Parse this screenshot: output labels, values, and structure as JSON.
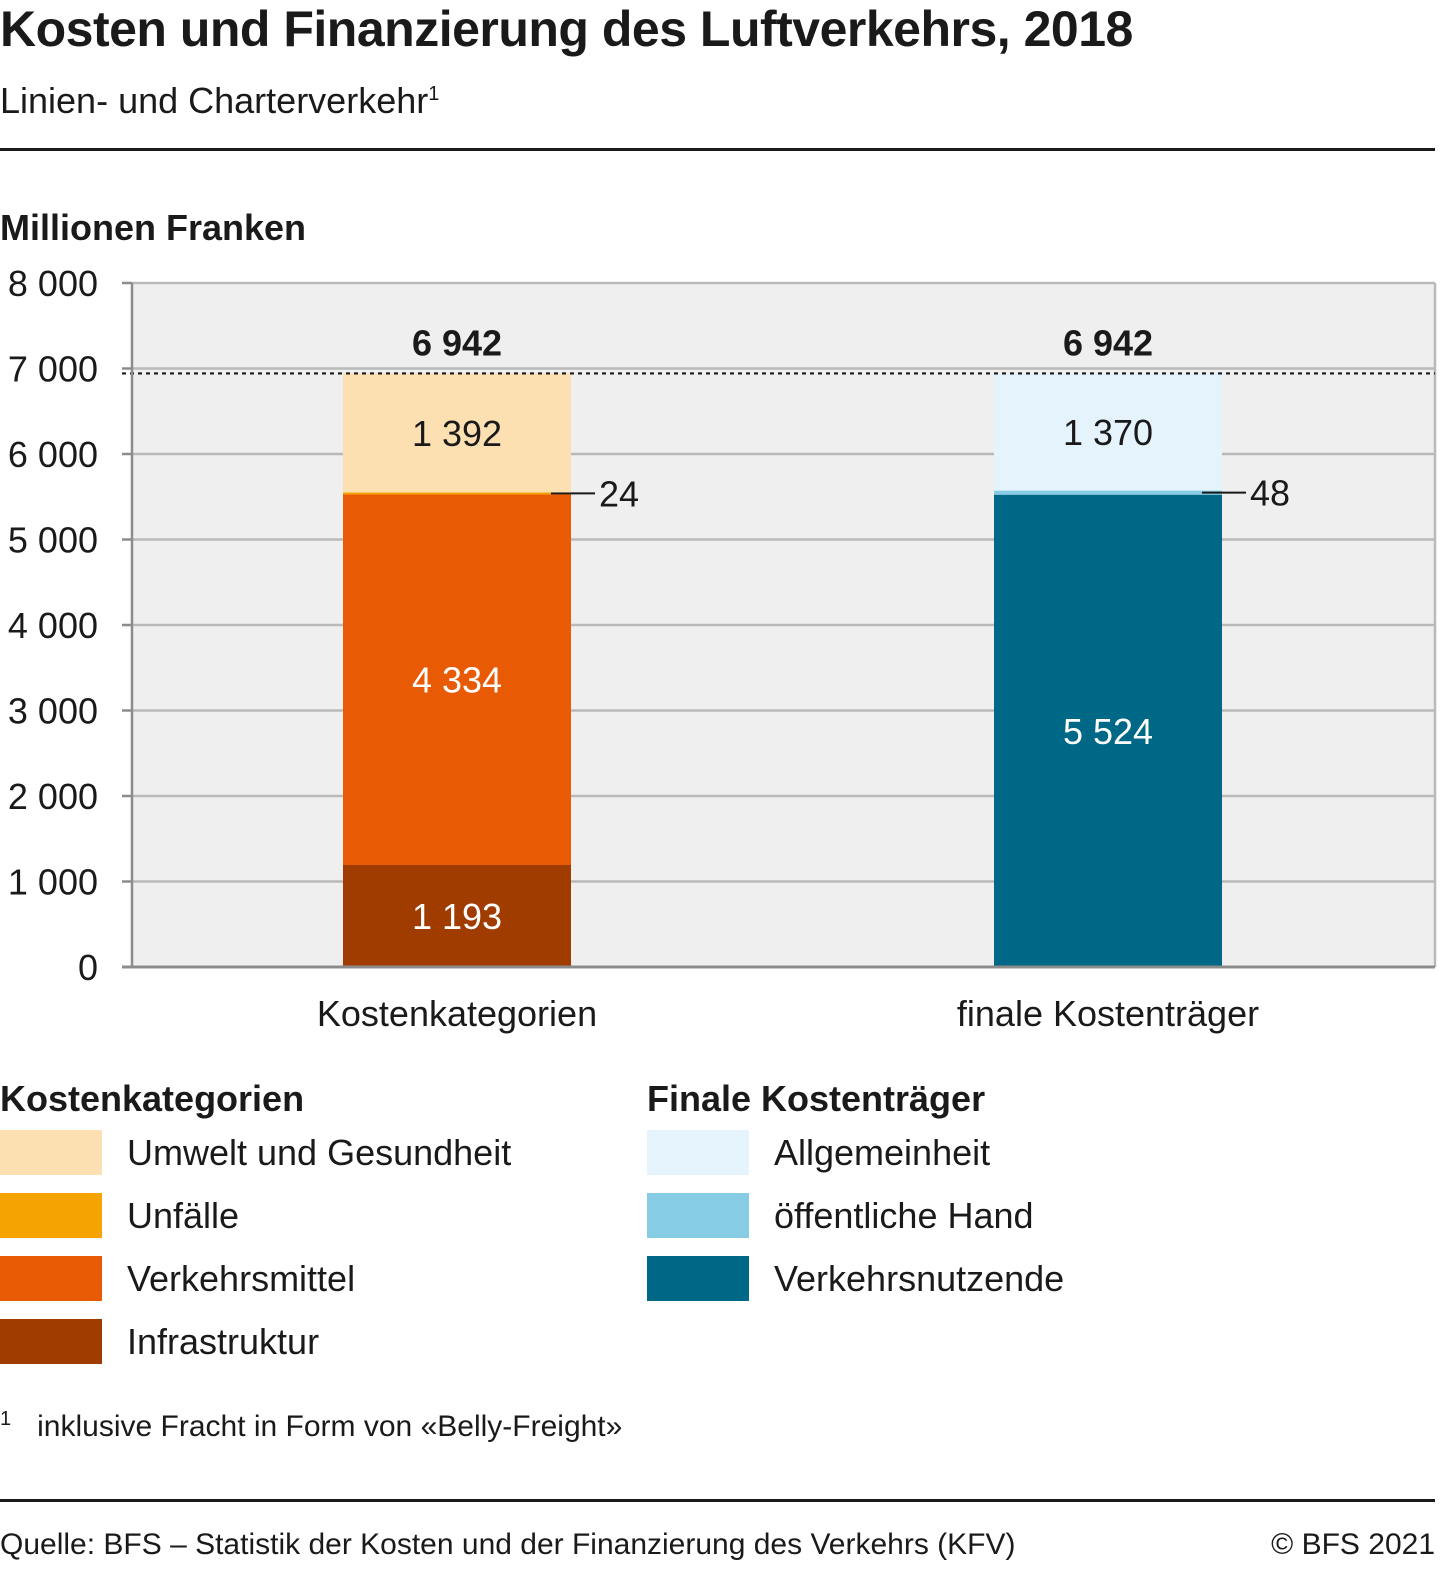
{
  "header": {
    "title": "Kosten und Finanzierung des Luftverkehrs, 2018",
    "subtitle": "Linien- und Charterverkehr",
    "subtitle_footnote_mark": "1"
  },
  "chart_data": {
    "type": "bar",
    "stacked": true,
    "ylabel": "Millionen Franken",
    "ylim": [
      0,
      8000
    ],
    "yticks": [
      0,
      1000,
      2000,
      3000,
      4000,
      5000,
      6000,
      7000,
      8000
    ],
    "ytick_labels": [
      "0",
      "1 000",
      "2 000",
      "3 000",
      "4 000",
      "5 000",
      "6 000",
      "7 000",
      "8 000"
    ],
    "grid": true,
    "reference_line": {
      "value": 6942,
      "style": "dotted"
    },
    "bars": [
      {
        "category": "Kostenkategorien",
        "total": 6942,
        "total_label": "6 942",
        "segments": [
          {
            "name": "Infrastruktur",
            "value": 1193,
            "label": "1 193",
            "color": "#a13c00",
            "label_color": "#ffffff"
          },
          {
            "name": "Verkehrsmittel",
            "value": 4334,
            "label": "4 334",
            "color": "#e85a04",
            "label_color": "#ffffff"
          },
          {
            "name": "Unfälle",
            "value": 24,
            "label": "24",
            "color": "#f5a300",
            "label_color": "#1a1a1a",
            "label_outside": true
          },
          {
            "name": "Umwelt und Gesundheit",
            "value": 1392,
            "label": "1 392",
            "color": "#fde0b2",
            "label_color": "#1a1a1a"
          }
        ]
      },
      {
        "category": "finale Kostenträger",
        "total": 6942,
        "total_label": "6 942",
        "segments": [
          {
            "name": "Verkehrsnutzende",
            "value": 5524,
            "label": "5 524",
            "color": "#006887",
            "label_color": "#ffffff"
          },
          {
            "name": "öffentliche Hand",
            "value": 48,
            "label": "48",
            "color": "#86cce4",
            "label_color": "#1a1a1a",
            "label_outside": true
          },
          {
            "name": "Allgemeinheit",
            "value": 1370,
            "label": "1 370",
            "color": "#e5f3fc",
            "label_color": "#1a1a1a"
          }
        ]
      }
    ]
  },
  "legend": {
    "groups": [
      {
        "title": "Kostenkategorien",
        "items": [
          {
            "label": "Umwelt und Gesundheit",
            "color": "#fde0b2"
          },
          {
            "label": "Unfälle",
            "color": "#f5a300"
          },
          {
            "label": "Verkehrsmittel",
            "color": "#e85a04"
          },
          {
            "label": "Infrastruktur",
            "color": "#a13c00"
          }
        ]
      },
      {
        "title": "Finale Kostenträger",
        "items": [
          {
            "label": "Allgemeinheit",
            "color": "#e5f3fc"
          },
          {
            "label": "öffentliche Hand",
            "color": "#86cce4"
          },
          {
            "label": "Verkehrsnutzende",
            "color": "#006887"
          }
        ]
      }
    ]
  },
  "footnote": {
    "mark": "1",
    "text": "inklusive Fracht in Form von «Belly-Freight»"
  },
  "footer": {
    "source": "Quelle: BFS – Statistik der Kosten und der Finanzierung des Verkehrs (KFV)",
    "copyright": "© BFS 2021"
  },
  "colors": {
    "plot_background": "#efefef",
    "gridline": "#b9b9b9",
    "axis": "#8c8c8c",
    "text": "#1a1a1a"
  }
}
